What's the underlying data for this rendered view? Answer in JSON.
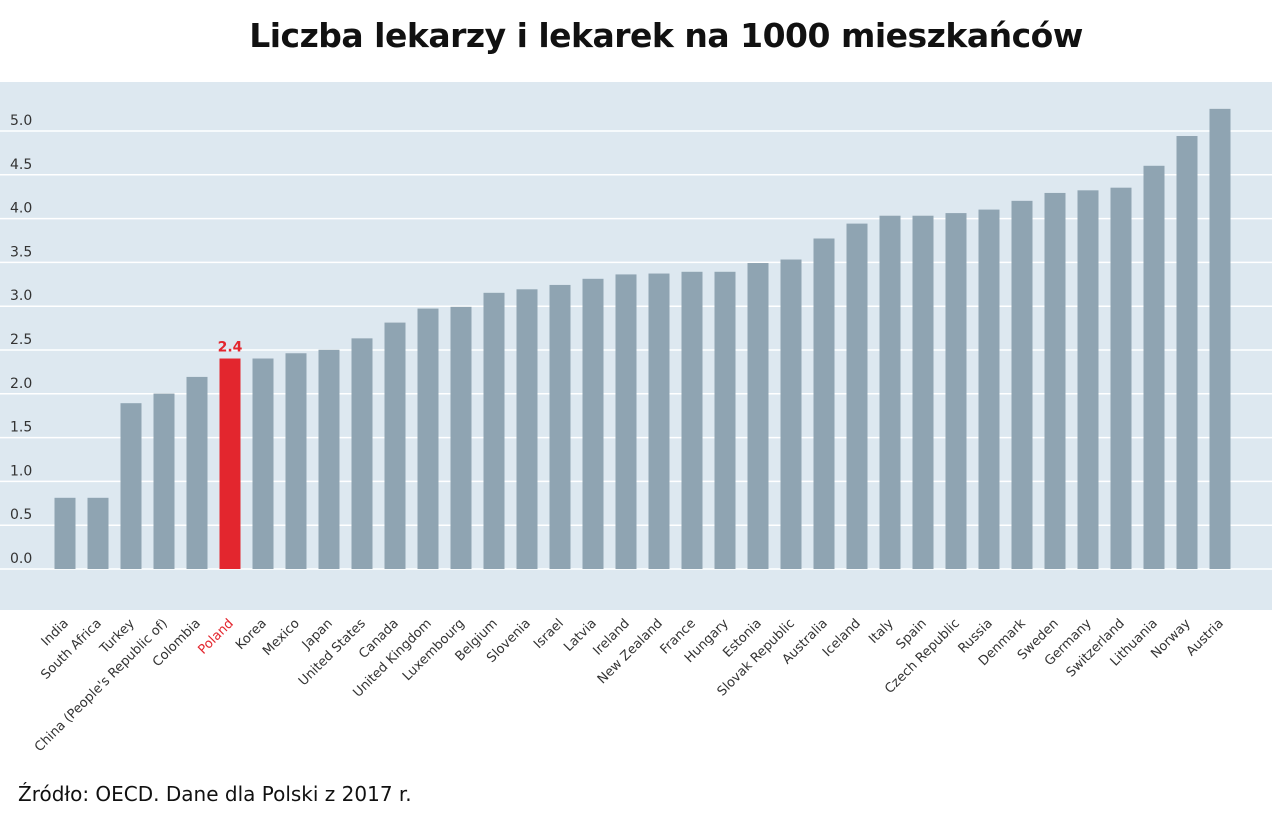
{
  "chart_data": {
    "type": "bar",
    "title": "Liczba lekarzy i lekarek na 1000 mieszkańców",
    "source": "Źródło: OECD. Dane dla Polski z 2017 r.",
    "categories": [
      "India",
      "South Africa",
      "Turkey",
      "China (People's Republic of)",
      "Colombia",
      "Poland",
      "Korea",
      "Mexico",
      "Japan",
      "United States",
      "Canada",
      "United Kingdom",
      "Luxembourg",
      "Belgium",
      "Slovenia",
      "Israel",
      "Latvia",
      "Ireland",
      "New Zealand",
      "France",
      "Hungary",
      "Estonia",
      "Slovak Republic",
      "Australia",
      "Iceland",
      "Italy",
      "Spain",
      "Czech Republic",
      "Russia",
      "Denmark",
      "Sweden",
      "Germany",
      "Switzerland",
      "Lithuania",
      "Norway",
      "Austria"
    ],
    "values": [
      0.79,
      0.79,
      1.87,
      1.98,
      2.17,
      2.38,
      2.38,
      2.44,
      2.48,
      2.61,
      2.79,
      2.95,
      2.97,
      3.13,
      3.17,
      3.22,
      3.29,
      3.34,
      3.35,
      3.37,
      3.37,
      3.47,
      3.51,
      3.75,
      3.92,
      4.01,
      4.01,
      4.04,
      4.08,
      4.18,
      4.27,
      4.3,
      4.33,
      4.58,
      4.92,
      5.23
    ],
    "highlight": {
      "category": "Poland",
      "label": "2.4",
      "color": "#e3262e"
    },
    "yticks": [
      "0.0",
      "0.5",
      "1.0",
      "1.5",
      "2.0",
      "2.5",
      "3.0",
      "3.5",
      "4.0",
      "4.5",
      "5.0"
    ],
    "ylim": [
      0,
      5.4
    ],
    "grid": true,
    "colors": {
      "bar": "#8fa4b2",
      "highlight": "#e3262e",
      "plot_background": "#dde8f0",
      "grid": "#ffffff"
    }
  }
}
